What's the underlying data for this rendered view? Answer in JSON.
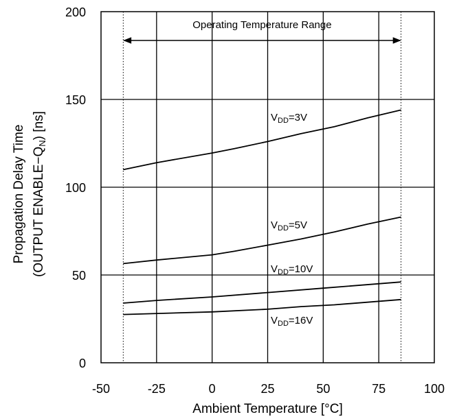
{
  "chart_data": {
    "type": "line",
    "title": "",
    "xlabel": "Ambient Temperature [°C]",
    "ylabel_line1": "Propagation Delay Time",
    "ylabel_line2_prefix": "(OUTPUT ENABLE−Q",
    "ylabel_line2_sub": "N",
    "ylabel_line2_suffix": ") [ns]",
    "xlim": [
      -50,
      100
    ],
    "ylim": [
      0,
      200
    ],
    "xticks": [
      "-50",
      "-25",
      "0",
      "25",
      "50",
      "75",
      "100"
    ],
    "yticks": [
      "0",
      "50",
      "100",
      "150",
      "200"
    ],
    "grid": true,
    "operating_range": {
      "label": "Operating Temperature Range",
      "x_start": -40,
      "x_end": 85
    },
    "series": [
      {
        "name_prefix": "V",
        "name_sub": "DD",
        "name_suffix": "=3V",
        "x": [
          -40,
          -25,
          0,
          10,
          25,
          40,
          55,
          70,
          85
        ],
        "values": [
          110,
          114,
          119.5,
          122,
          126,
          130.5,
          134.5,
          139.5,
          144
        ]
      },
      {
        "name_prefix": "V",
        "name_sub": "DD",
        "name_suffix": "=5V",
        "x": [
          -40,
          -25,
          0,
          10,
          25,
          40,
          55,
          70,
          85
        ],
        "values": [
          56.5,
          58.5,
          61.5,
          63.5,
          67,
          70.5,
          74.5,
          79,
          83
        ]
      },
      {
        "name_prefix": "V",
        "name_sub": "DD",
        "name_suffix": "=10V",
        "x": [
          -40,
          -25,
          0,
          25,
          50,
          85
        ],
        "values": [
          34,
          35.5,
          37.5,
          40,
          42.5,
          46
        ]
      },
      {
        "name_prefix": "V",
        "name_sub": "DD",
        "name_suffix": "=16V",
        "x": [
          -40,
          0,
          25,
          40,
          55,
          85
        ],
        "values": [
          27.5,
          29,
          30.5,
          32,
          33,
          36
        ]
      }
    ]
  }
}
